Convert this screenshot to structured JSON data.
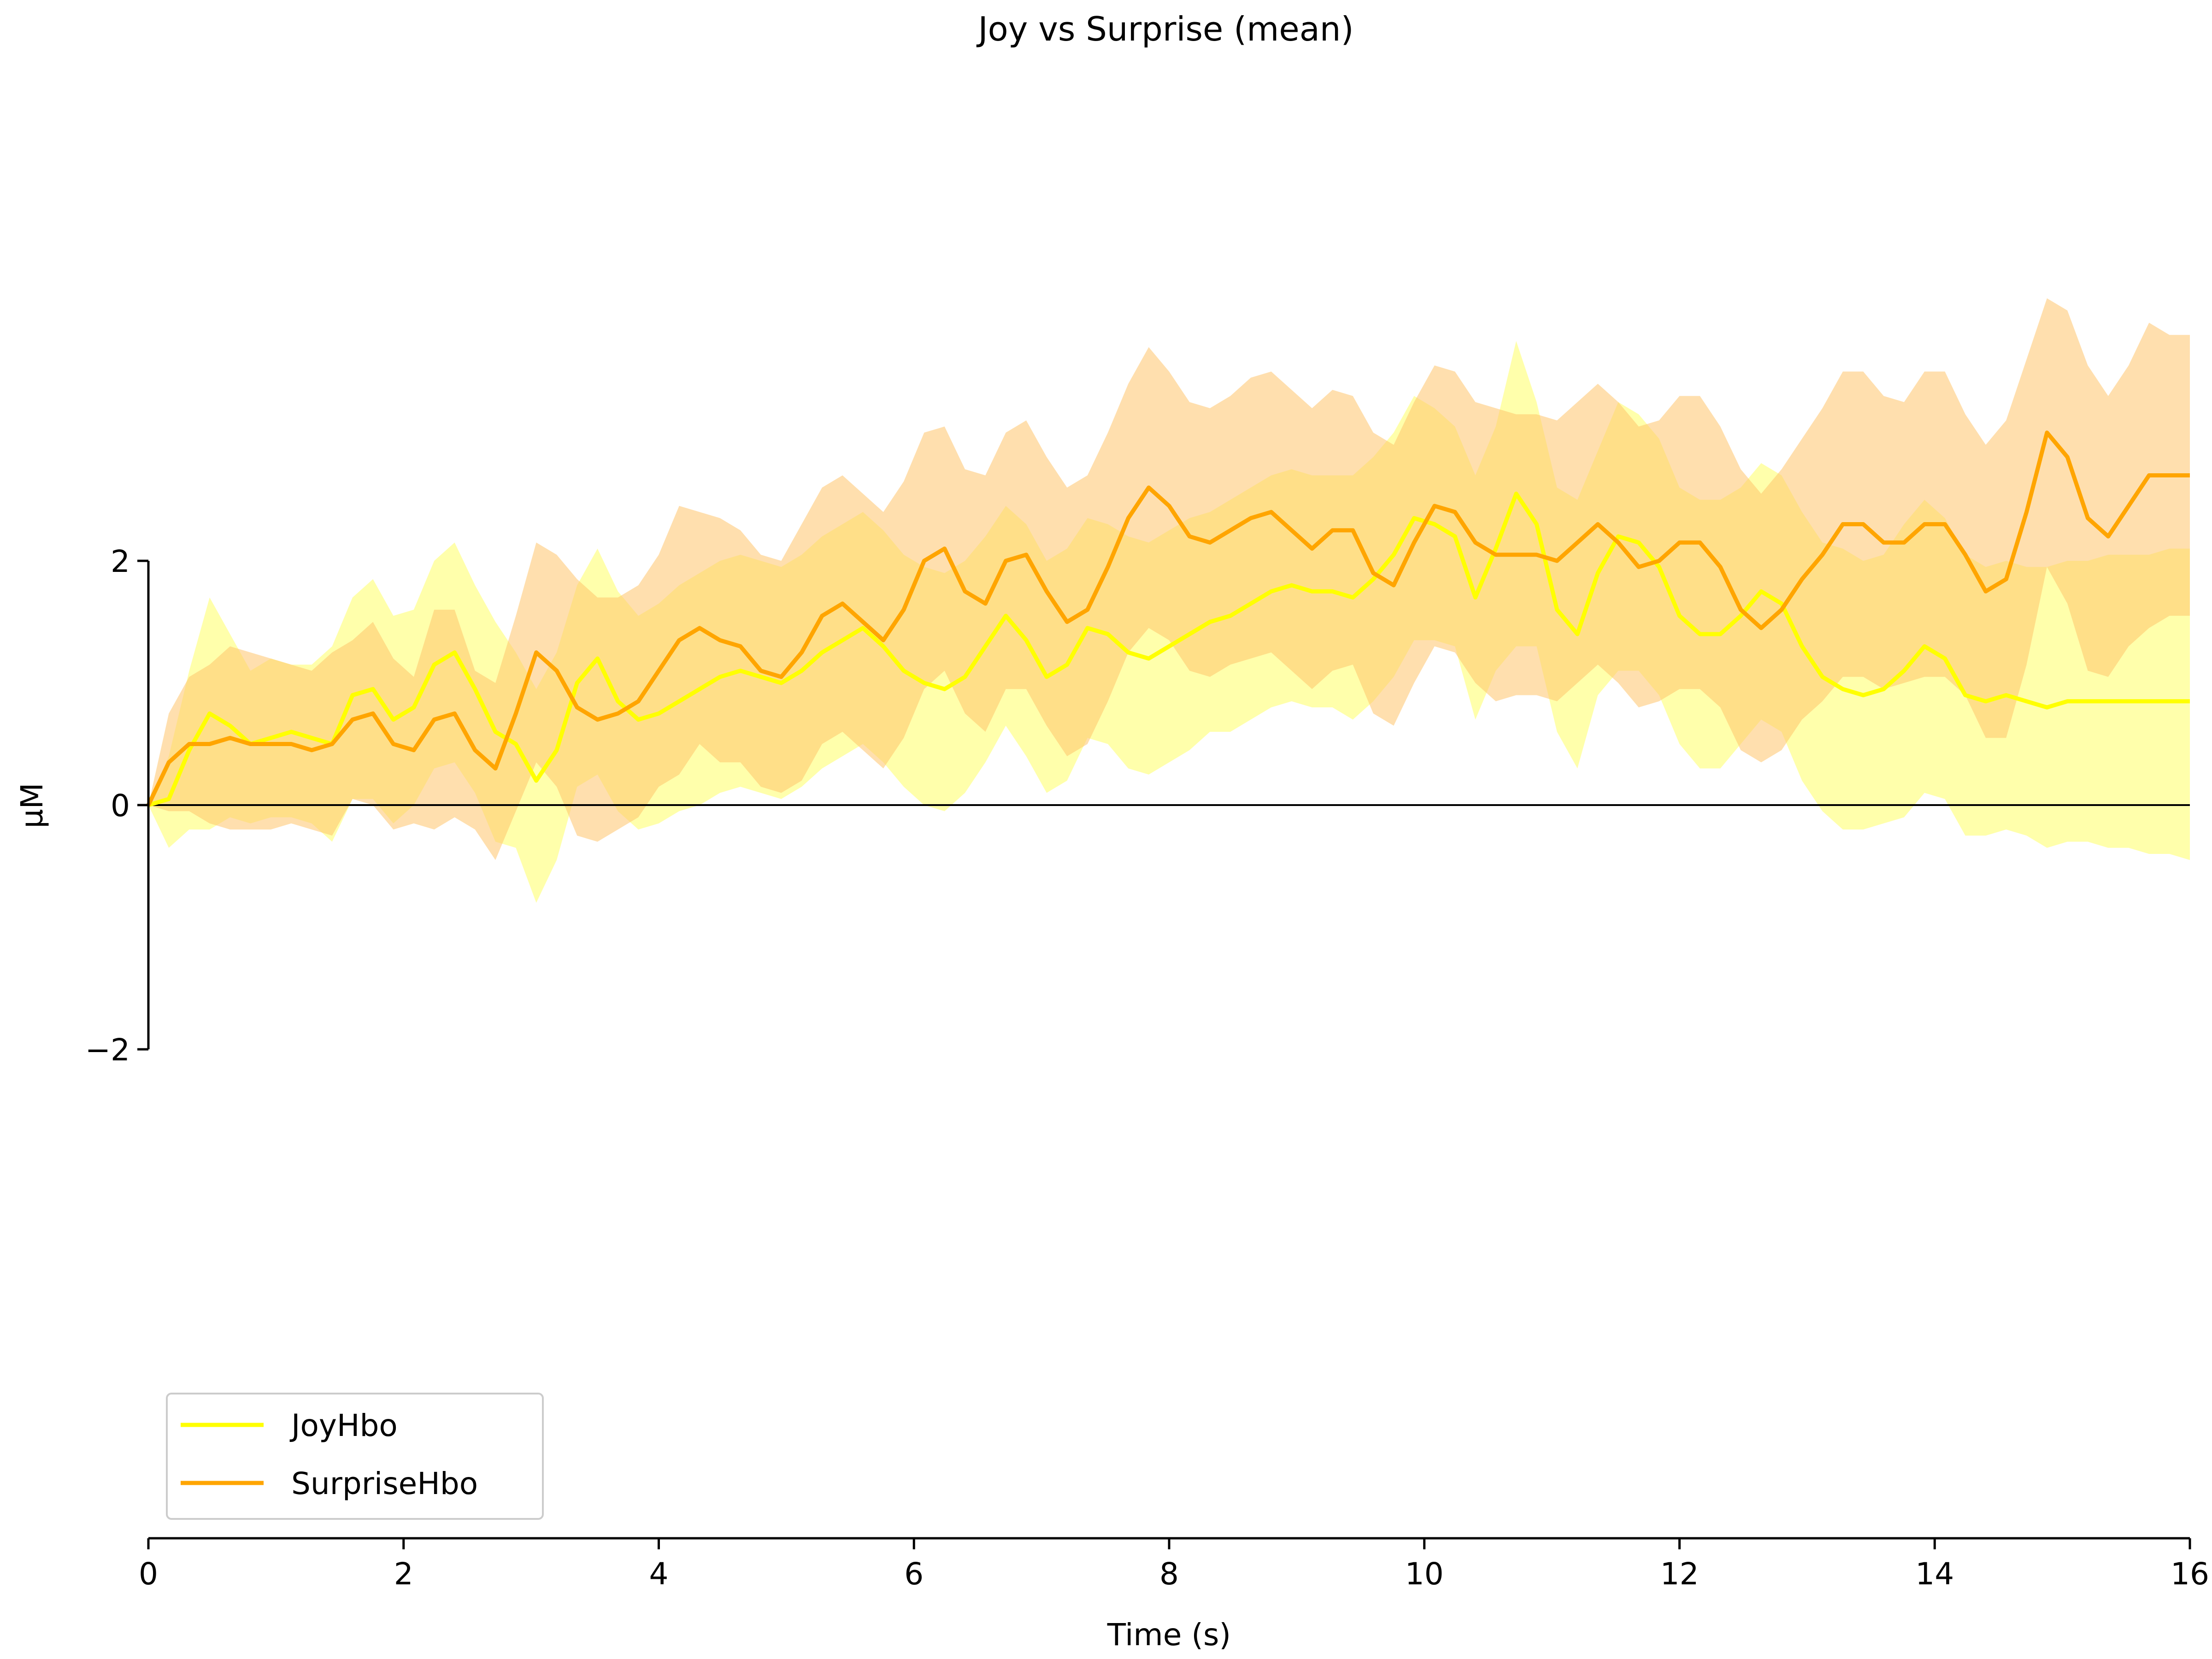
{
  "chart_data": {
    "type": "line",
    "title": "Joy vs Surprise (mean)",
    "xlabel": "Time (s)",
    "ylabel": "µM",
    "xlim": [
      0,
      16
    ],
    "ylim": [
      -6.3,
      6.3
    ],
    "xticks": [
      0,
      2,
      4,
      6,
      8,
      10,
      12,
      14,
      16
    ],
    "xtick_labels": [
      "0",
      "2",
      "4",
      "6",
      "8",
      "10",
      "12",
      "14",
      "16"
    ],
    "yticks": [
      -2,
      0,
      2
    ],
    "ytick_labels": [
      "−2",
      "0",
      "2"
    ],
    "zero_line": true,
    "grid": false,
    "legend_position": "lower-left",
    "x": [
      0,
      0.16,
      0.32,
      0.48,
      0.64,
      0.8,
      0.96,
      1.12,
      1.28,
      1.44,
      1.6,
      1.76,
      1.92,
      2.08,
      2.24,
      2.4,
      2.56,
      2.72,
      2.88,
      3.04,
      3.2,
      3.36,
      3.52,
      3.68,
      3.84,
      4.0,
      4.16,
      4.32,
      4.48,
      4.64,
      4.8,
      4.96,
      5.12,
      5.28,
      5.44,
      5.6,
      5.76,
      5.92,
      6.08,
      6.24,
      6.4,
      6.56,
      6.72,
      6.88,
      7.04,
      7.2,
      7.36,
      7.52,
      7.68,
      7.84,
      8.0,
      8.16,
      8.32,
      8.48,
      8.64,
      8.8,
      8.96,
      9.12,
      9.28,
      9.44,
      9.6,
      9.76,
      9.92,
      10.08,
      10.24,
      10.4,
      10.56,
      10.72,
      10.88,
      11.04,
      11.2,
      11.36,
      11.52,
      11.68,
      11.84,
      12.0,
      12.16,
      12.32,
      12.48,
      12.64,
      12.8,
      12.96,
      13.12,
      13.28,
      13.44,
      13.6,
      13.76,
      13.92,
      14.08,
      14.24,
      14.4,
      14.56,
      14.72,
      14.88,
      15.04,
      15.2,
      15.36,
      15.52,
      15.68,
      15.84,
      16.0
    ],
    "series": [
      {
        "name": "JoyHbo",
        "color": "#ffff00",
        "band_color": "#ffff66",
        "mean": [
          0,
          0.05,
          0.45,
          0.75,
          0.65,
          0.5,
          0.55,
          0.6,
          0.55,
          0.5,
          0.9,
          0.95,
          0.7,
          0.8,
          1.15,
          1.25,
          0.95,
          0.6,
          0.5,
          0.2,
          0.45,
          1.0,
          1.2,
          0.85,
          0.7,
          0.75,
          0.85,
          0.95,
          1.05,
          1.1,
          1.05,
          1.0,
          1.1,
          1.25,
          1.35,
          1.45,
          1.3,
          1.1,
          1.0,
          0.95,
          1.05,
          1.3,
          1.55,
          1.35,
          1.05,
          1.15,
          1.45,
          1.4,
          1.25,
          1.2,
          1.3,
          1.4,
          1.5,
          1.55,
          1.65,
          1.75,
          1.8,
          1.75,
          1.75,
          1.7,
          1.85,
          2.05,
          2.35,
          2.3,
          2.2,
          1.7,
          2.1,
          2.55,
          2.3,
          1.6,
          1.4,
          1.9,
          2.2,
          2.15,
          1.95,
          1.55,
          1.4,
          1.4,
          1.55,
          1.75,
          1.65,
          1.3,
          1.05,
          0.95,
          0.9,
          0.95,
          1.1,
          1.3,
          1.2,
          0.9,
          0.85,
          0.9,
          0.85,
          0.8,
          0.85,
          0.85,
          0.85,
          0.85,
          0.85,
          0.85,
          0.85
        ],
        "upper": [
          0,
          0.4,
          1.1,
          1.7,
          1.4,
          1.1,
          1.2,
          1.15,
          1.15,
          1.3,
          1.7,
          1.85,
          1.55,
          1.6,
          2.0,
          2.15,
          1.8,
          1.5,
          1.25,
          0.95,
          1.25,
          1.8,
          2.1,
          1.75,
          1.55,
          1.65,
          1.8,
          1.9,
          2.0,
          2.05,
          2.0,
          1.95,
          2.05,
          2.2,
          2.3,
          2.4,
          2.25,
          2.05,
          1.95,
          1.9,
          2.0,
          2.2,
          2.45,
          2.3,
          2.0,
          2.1,
          2.35,
          2.3,
          2.2,
          2.15,
          2.25,
          2.35,
          2.4,
          2.5,
          2.6,
          2.7,
          2.75,
          2.7,
          2.7,
          2.7,
          2.85,
          3.05,
          3.35,
          3.25,
          3.1,
          2.7,
          3.1,
          3.8,
          3.3,
          2.6,
          2.5,
          2.9,
          3.3,
          3.2,
          3.0,
          2.6,
          2.5,
          2.5,
          2.6,
          2.8,
          2.7,
          2.4,
          2.15,
          2.1,
          2.0,
          2.05,
          2.3,
          2.5,
          2.35,
          2.05,
          1.95,
          2.0,
          1.95,
          1.95,
          2.0,
          2.0,
          2.05,
          2.05,
          2.05,
          2.1,
          2.1
        ],
        "lower": [
          0,
          -0.35,
          -0.2,
          -0.2,
          -0.1,
          -0.15,
          -0.1,
          -0.1,
          -0.15,
          -0.3,
          0.05,
          0.05,
          -0.15,
          0.0,
          0.3,
          0.35,
          0.1,
          -0.3,
          -0.35,
          -0.8,
          -0.45,
          0.15,
          0.25,
          -0.05,
          -0.2,
          -0.15,
          -0.05,
          0.0,
          0.1,
          0.15,
          0.1,
          0.05,
          0.15,
          0.3,
          0.4,
          0.5,
          0.35,
          0.15,
          0.0,
          -0.05,
          0.1,
          0.35,
          0.65,
          0.4,
          0.1,
          0.2,
          0.55,
          0.5,
          0.3,
          0.25,
          0.35,
          0.45,
          0.6,
          0.6,
          0.7,
          0.8,
          0.85,
          0.8,
          0.8,
          0.7,
          0.85,
          1.05,
          1.35,
          1.35,
          1.3,
          0.7,
          1.1,
          1.3,
          1.3,
          0.6,
          0.3,
          0.9,
          1.1,
          1.1,
          0.9,
          0.5,
          0.3,
          0.3,
          0.5,
          0.7,
          0.6,
          0.2,
          -0.05,
          -0.2,
          -0.2,
          -0.15,
          -0.1,
          0.1,
          0.05,
          -0.25,
          -0.25,
          -0.2,
          -0.25,
          -0.35,
          -0.3,
          -0.3,
          -0.35,
          -0.35,
          -0.4,
          -0.4,
          -0.45
        ]
      },
      {
        "name": "SurpriseHbo",
        "color": "#ffa500",
        "band_color": "#ffc46b",
        "mean": [
          0,
          0.35,
          0.5,
          0.5,
          0.55,
          0.5,
          0.5,
          0.5,
          0.45,
          0.5,
          0.7,
          0.75,
          0.5,
          0.45,
          0.7,
          0.75,
          0.45,
          0.3,
          0.75,
          1.25,
          1.1,
          0.8,
          0.7,
          0.75,
          0.85,
          1.1,
          1.35,
          1.45,
          1.35,
          1.3,
          1.1,
          1.05,
          1.25,
          1.55,
          1.65,
          1.5,
          1.35,
          1.6,
          2.0,
          2.1,
          1.75,
          1.65,
          2.0,
          2.05,
          1.75,
          1.5,
          1.6,
          1.95,
          2.35,
          2.6,
          2.45,
          2.2,
          2.15,
          2.25,
          2.35,
          2.4,
          2.25,
          2.1,
          2.25,
          2.25,
          1.9,
          1.8,
          2.15,
          2.45,
          2.4,
          2.15,
          2.05,
          2.05,
          2.05,
          2.0,
          2.15,
          2.3,
          2.15,
          1.95,
          2.0,
          2.15,
          2.15,
          1.95,
          1.6,
          1.45,
          1.6,
          1.85,
          2.05,
          2.3,
          2.3,
          2.15,
          2.15,
          2.3,
          2.3,
          2.05,
          1.75,
          1.85,
          2.4,
          3.05,
          2.85,
          2.35,
          2.2,
          2.45,
          2.7,
          2.7,
          2.7
        ],
        "upper": [
          0,
          0.75,
          1.05,
          1.15,
          1.3,
          1.25,
          1.2,
          1.15,
          1.1,
          1.25,
          1.35,
          1.5,
          1.2,
          1.05,
          1.6,
          1.6,
          1.1,
          1.0,
          1.55,
          2.15,
          2.05,
          1.85,
          1.7,
          1.7,
          1.8,
          2.05,
          2.45,
          2.4,
          2.35,
          2.25,
          2.05,
          2.0,
          2.3,
          2.6,
          2.7,
          2.55,
          2.4,
          2.65,
          3.05,
          3.1,
          2.75,
          2.7,
          3.05,
          3.15,
          2.85,
          2.6,
          2.7,
          3.05,
          3.45,
          3.75,
          3.55,
          3.3,
          3.25,
          3.35,
          3.5,
          3.55,
          3.4,
          3.25,
          3.4,
          3.35,
          3.05,
          2.95,
          3.3,
          3.6,
          3.55,
          3.3,
          3.25,
          3.2,
          3.2,
          3.15,
          3.3,
          3.45,
          3.3,
          3.1,
          3.15,
          3.35,
          3.35,
          3.1,
          2.75,
          2.55,
          2.75,
          3.0,
          3.25,
          3.55,
          3.55,
          3.35,
          3.3,
          3.55,
          3.55,
          3.2,
          2.95,
          3.15,
          3.65,
          4.15,
          4.05,
          3.6,
          3.35,
          3.6,
          3.95,
          3.85,
          3.85
        ],
        "lower": [
          0,
          -0.05,
          -0.05,
          -0.15,
          -0.2,
          -0.2,
          -0.2,
          -0.15,
          -0.2,
          -0.25,
          0.05,
          0.0,
          -0.2,
          -0.15,
          -0.2,
          -0.1,
          -0.2,
          -0.45,
          -0.05,
          0.35,
          0.15,
          -0.25,
          -0.3,
          -0.2,
          -0.1,
          0.15,
          0.25,
          0.5,
          0.35,
          0.35,
          0.15,
          0.1,
          0.2,
          0.5,
          0.6,
          0.45,
          0.3,
          0.55,
          0.95,
          1.1,
          0.75,
          0.6,
          0.95,
          0.95,
          0.65,
          0.4,
          0.5,
          0.85,
          1.25,
          1.45,
          1.35,
          1.1,
          1.05,
          1.15,
          1.2,
          1.25,
          1.1,
          0.95,
          1.1,
          1.15,
          0.75,
          0.65,
          1.0,
          1.3,
          1.25,
          1.0,
          0.85,
          0.9,
          0.9,
          0.85,
          1.0,
          1.15,
          1.0,
          0.8,
          0.85,
          0.95,
          0.95,
          0.8,
          0.45,
          0.35,
          0.45,
          0.7,
          0.85,
          1.05,
          1.05,
          0.95,
          1.0,
          1.05,
          1.05,
          0.9,
          0.55,
          0.55,
          1.15,
          1.95,
          1.65,
          1.1,
          1.05,
          1.3,
          1.45,
          1.55,
          1.55
        ]
      }
    ]
  }
}
